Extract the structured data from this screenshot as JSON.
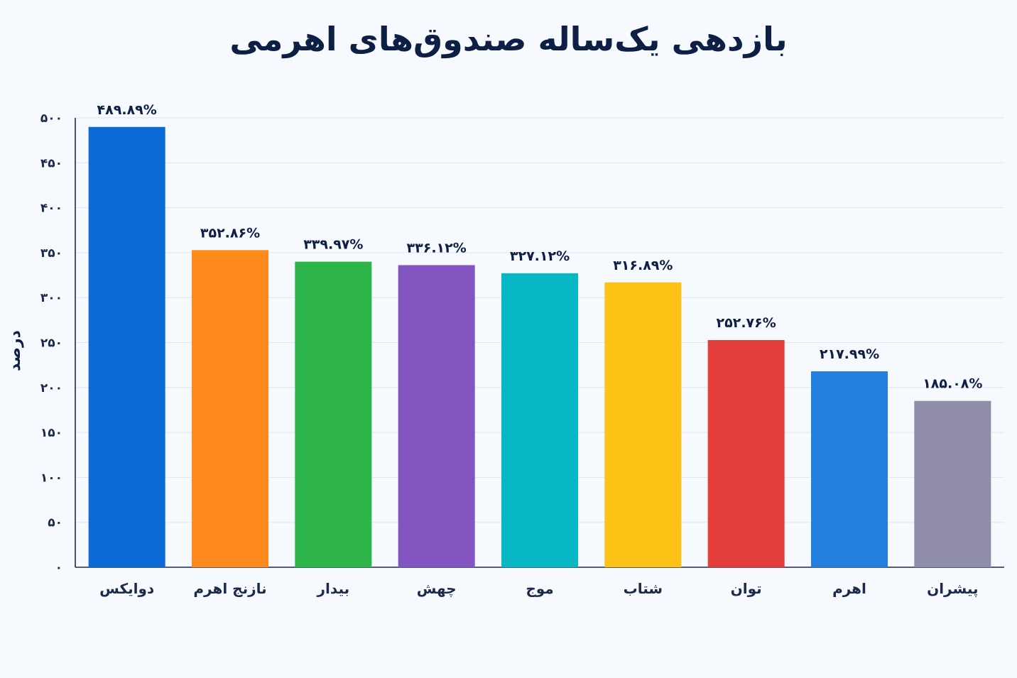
{
  "chart_data": {
    "type": "bar",
    "title": "بازدهی یک‌ساله صندوق‌های اهرمی",
    "xlabel": "",
    "ylabel": "درصد",
    "ylim": [
      0,
      500
    ],
    "yticks": [
      0,
      50,
      100,
      150,
      200,
      250,
      300,
      350,
      400,
      450,
      500
    ],
    "ytick_labels": [
      "۰",
      "۵۰",
      "۱۰۰",
      "۱۵۰",
      "۲۰۰",
      "۲۵۰",
      "۳۰۰",
      "۳۵۰",
      "۴۰۰",
      "۴۵۰",
      "۵۰۰"
    ],
    "grid": true,
    "categories": [
      "دوایکس",
      "نازنج اهرم",
      "بیدار",
      "چهش",
      "موج",
      "شتاب",
      "توان",
      "اهرم",
      "پیشران"
    ],
    "values": [
      489.89,
      352.86,
      339.97,
      336.12,
      327.12,
      316.89,
      252.76,
      217.99,
      185.08
    ],
    "data_labels": [
      "۴۸۹.۸۹%",
      "۳۵۲.۸۶%",
      "۳۳۹.۹۷%",
      "۳۳۶.۱۲%",
      "۳۲۷.۱۲%",
      "۳۱۶.۸۹%",
      "۲۵۲.۷۶%",
      "۲۱۷.۹۹%",
      "۱۸۵.۰۸%"
    ],
    "colors": [
      "#0b6bd6",
      "#ff8a1c",
      "#2db54a",
      "#8255c1",
      "#07b8c4",
      "#fcc215",
      "#e43f3a",
      "#2280dc",
      "#8f8da8"
    ]
  }
}
